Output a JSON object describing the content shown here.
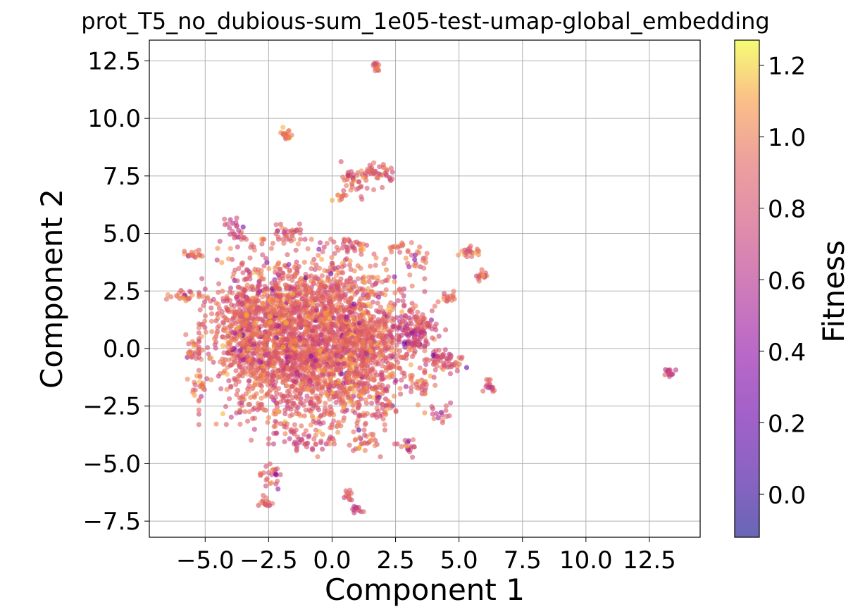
{
  "chart_data": {
    "type": "scatter",
    "title": "prot_T5_no_dubious-sum_1e05-test-umap-global_embedding",
    "xlabel": "Component 1",
    "ylabel": "Component 2",
    "xlim": [
      -7.2,
      14.5
    ],
    "ylim": [
      -8.2,
      13.4
    ],
    "xticks": [
      -5.0,
      -2.5,
      0.0,
      2.5,
      5.0,
      7.5,
      10.0,
      12.5
    ],
    "yticks": [
      -7.5,
      -5.0,
      -2.5,
      0.0,
      2.5,
      5.0,
      7.5,
      10.0,
      12.5
    ],
    "xtick_labels": [
      "−5.0",
      "−2.5",
      "0.0",
      "2.5",
      "5.0",
      "7.5",
      "10.0",
      "12.5"
    ],
    "ytick_labels": [
      "−7.5",
      "−5.0",
      "−2.5",
      "0.0",
      "2.5",
      "5.0",
      "7.5",
      "10.0",
      "12.5"
    ],
    "grid": true,
    "colormap": "plasma",
    "marker_alpha": 0.6,
    "colorbar": {
      "label": "Fitness",
      "range": [
        -0.12,
        1.27
      ],
      "ticks": [
        0.0,
        0.2,
        0.4,
        0.6,
        0.8,
        1.0,
        1.2
      ],
      "tick_labels": [
        "0.0",
        "0.2",
        "0.4",
        "0.6",
        "0.8",
        "1.0",
        "1.2"
      ]
    },
    "clusters": [
      {
        "x": -0.8,
        "y": 0.3,
        "sx": 1.9,
        "sy": 1.9,
        "n": 2600,
        "fitness": 0.9
      },
      {
        "x": -3.2,
        "y": 1.0,
        "sx": 0.8,
        "sy": 1.6,
        "n": 350,
        "fitness": 0.9
      },
      {
        "x": 1.6,
        "y": 0.2,
        "sx": 0.8,
        "sy": 1.6,
        "n": 300,
        "fitness": 0.9
      },
      {
        "x": 3.3,
        "y": 0.9,
        "sx": 0.5,
        "sy": 0.5,
        "n": 120,
        "fitness": 0.75
      },
      {
        "x": 4.4,
        "y": -0.5,
        "sx": 0.4,
        "sy": 0.3,
        "n": 60,
        "fitness": 0.85
      },
      {
        "x": 1.8,
        "y": 12.3,
        "sx": 0.15,
        "sy": 0.1,
        "n": 15,
        "fitness": 0.95
      },
      {
        "x": -1.8,
        "y": 9.3,
        "sx": 0.15,
        "sy": 0.2,
        "n": 20,
        "fitness": 0.95
      },
      {
        "x": 1.8,
        "y": 7.6,
        "sx": 0.35,
        "sy": 0.3,
        "n": 45,
        "fitness": 0.85
      },
      {
        "x": 0.8,
        "y": 7.3,
        "sx": 0.3,
        "sy": 0.35,
        "n": 35,
        "fitness": 0.95
      },
      {
        "x": 0.3,
        "y": 6.6,
        "sx": 0.15,
        "sy": 0.1,
        "n": 10,
        "fitness": 0.95
      },
      {
        "x": -5.5,
        "y": 4.1,
        "sx": 0.2,
        "sy": 0.1,
        "n": 15,
        "fitness": 0.95
      },
      {
        "x": -5.8,
        "y": 2.3,
        "sx": 0.4,
        "sy": 0.15,
        "n": 25,
        "fitness": 0.95
      },
      {
        "x": -5.5,
        "y": -0.1,
        "sx": 0.25,
        "sy": 0.3,
        "n": 20,
        "fitness": 0.95
      },
      {
        "x": -5.2,
        "y": -1.5,
        "sx": 0.25,
        "sy": 0.3,
        "n": 20,
        "fitness": 0.95
      },
      {
        "x": -2.4,
        "y": -5.4,
        "sx": 0.2,
        "sy": 0.3,
        "n": 25,
        "fitness": 0.9
      },
      {
        "x": -2.6,
        "y": -6.6,
        "sx": 0.15,
        "sy": 0.15,
        "n": 15,
        "fitness": 0.95
      },
      {
        "x": 0.6,
        "y": -6.4,
        "sx": 0.15,
        "sy": 0.15,
        "n": 12,
        "fitness": 0.8
      },
      {
        "x": 1.0,
        "y": -7.0,
        "sx": 0.15,
        "sy": 0.1,
        "n": 12,
        "fitness": 0.75
      },
      {
        "x": 1.2,
        "y": -4.0,
        "sx": 0.3,
        "sy": 0.3,
        "n": 25,
        "fitness": 0.95
      },
      {
        "x": 3.0,
        "y": -4.3,
        "sx": 0.2,
        "sy": 0.2,
        "n": 15,
        "fitness": 0.9
      },
      {
        "x": 4.3,
        "y": -2.8,
        "sx": 0.25,
        "sy": 0.25,
        "n": 15,
        "fitness": 0.85
      },
      {
        "x": 3.5,
        "y": -1.6,
        "sx": 0.3,
        "sy": 0.2,
        "n": 20,
        "fitness": 0.9
      },
      {
        "x": 6.2,
        "y": -1.7,
        "sx": 0.15,
        "sy": 0.15,
        "n": 15,
        "fitness": 0.85
      },
      {
        "x": 5.3,
        "y": 4.2,
        "sx": 0.25,
        "sy": 0.15,
        "n": 20,
        "fitness": 0.9
      },
      {
        "x": 5.9,
        "y": 3.1,
        "sx": 0.15,
        "sy": 0.15,
        "n": 15,
        "fitness": 0.9
      },
      {
        "x": 4.6,
        "y": 2.2,
        "sx": 0.2,
        "sy": 0.15,
        "n": 15,
        "fitness": 0.95
      },
      {
        "x": 3.3,
        "y": 3.9,
        "sx": 0.3,
        "sy": 0.3,
        "n": 20,
        "fitness": 0.95
      },
      {
        "x": 2.6,
        "y": 4.4,
        "sx": 0.2,
        "sy": 0.1,
        "n": 12,
        "fitness": 0.95
      },
      {
        "x": 0.9,
        "y": 4.5,
        "sx": 0.3,
        "sy": 0.15,
        "n": 20,
        "fitness": 0.85
      },
      {
        "x": -1.8,
        "y": 5.1,
        "sx": 0.4,
        "sy": 0.2,
        "n": 25,
        "fitness": 0.85
      },
      {
        "x": -3.8,
        "y": 5.0,
        "sx": 0.3,
        "sy": 0.35,
        "n": 25,
        "fitness": 0.75
      },
      {
        "x": 13.3,
        "y": -1.0,
        "sx": 0.12,
        "sy": 0.1,
        "n": 15,
        "fitness": 0.75
      },
      {
        "x": -1.0,
        "y": -4.0,
        "sx": 0.4,
        "sy": 0.3,
        "n": 30,
        "fitness": 0.75
      },
      {
        "x": 2.0,
        "y": -2.5,
        "sx": 0.3,
        "sy": 0.3,
        "n": 25,
        "fitness": 0.85
      }
    ]
  }
}
